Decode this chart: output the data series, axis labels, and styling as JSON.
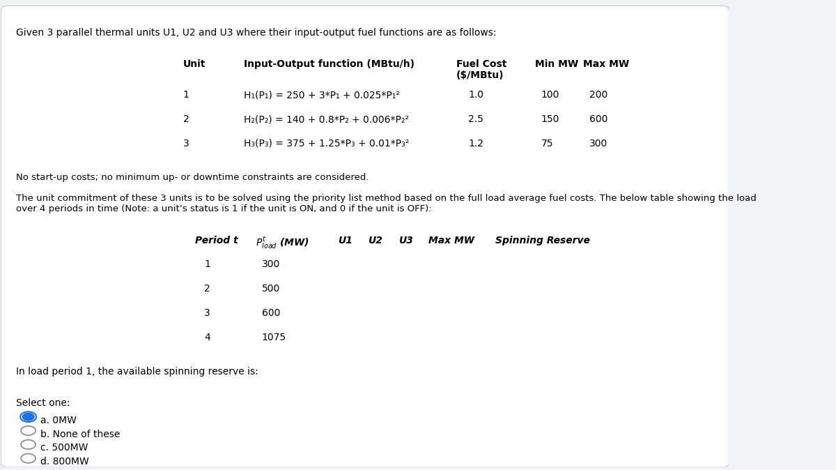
{
  "title": "Given 3 parallel thermal units U1, U2 and U3 where their input-output fuel functions are as follows:",
  "table1_header": [
    "Unit",
    "Input-Output function (MBtu/h)",
    "Fuel Cost\n($/MBtu)",
    "Min MW",
    "Max MW"
  ],
  "table1_rows": [
    [
      "1",
      "H₁(P₁) = 250 + 3*P₁ + 0.025*P₁²",
      "1.0",
      "100",
      "200"
    ],
    [
      "2",
      "H₂(P₂) = 140 + 0.8*P₂ + 0.006*P₂²",
      "2.5",
      "150",
      "600"
    ],
    [
      "3",
      "H₃(P₃) = 375 + 1.25*P₃ + 0.01*P₃²",
      "1.2",
      "75",
      "300"
    ]
  ],
  "note1": "No start-up costs; no minimum up- or downtime constraints are considered.",
  "note2": "The unit commitment of these 3 units is to be solved using the priority list method based on the full load average fuel costs. The below table showing the load\nover 4 periods in time (Note: a unit’s status is 1 if the unit is ON, and 0 if the unit is OFF):",
  "table2_header": [
    "Period t",
    "Pᵇₗₒₓ (MW)",
    "U1",
    "U2",
    "U3",
    "Max MW",
    "Spinning Reserve"
  ],
  "table2_rows": [
    [
      "1",
      "300",
      "",
      "",
      "",
      "",
      ""
    ],
    [
      "2",
      "500",
      "",
      "",
      "",
      "",
      ""
    ],
    [
      "3",
      "600",
      "",
      "",
      "",
      "",
      ""
    ],
    [
      "4",
      "1075",
      "",
      "",
      "",
      "",
      ""
    ]
  ],
  "question": "In load period 1, the available spinning reserve is:",
  "select_one": "Select one:",
  "options": [
    "a. 0MW",
    "b. None of these",
    "c. 500MW",
    "d. 800MW"
  ],
  "selected_option": 0,
  "bg_color": "#f0f4f8",
  "box_color": "#ffffff",
  "border_color": "#c8d0d8"
}
